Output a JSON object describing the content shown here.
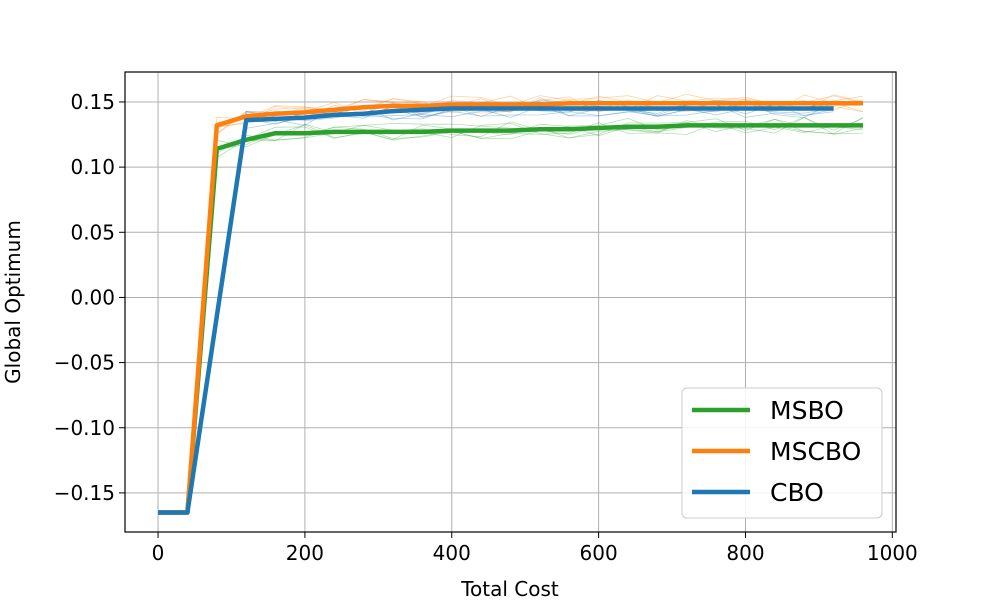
{
  "chart_data": {
    "type": "line",
    "title": "",
    "xlabel": "Total Cost",
    "ylabel": "Global Optimum",
    "xlim": [
      -45,
      1005
    ],
    "ylim": [
      -0.18,
      0.173
    ],
    "xticks": [
      0,
      200,
      400,
      600,
      800,
      1000
    ],
    "xtick_labels": [
      "0",
      "200",
      "400",
      "600",
      "800",
      "1000"
    ],
    "yticks": [
      -0.15,
      -0.1,
      -0.05,
      0.0,
      0.05,
      0.1,
      0.15
    ],
    "ytick_labels": [
      "−0.15",
      "−0.10",
      "−0.05",
      "0.00",
      "0.05",
      "0.10",
      "0.15"
    ],
    "grid": true,
    "legend_position": "lower-right",
    "series": [
      {
        "name": "MSBO",
        "color": "#2ca02c",
        "x": [
          0,
          40,
          80,
          120,
          160,
          200,
          240,
          280,
          320,
          360,
          400,
          440,
          480,
          520,
          560,
          600,
          640,
          680,
          720,
          760,
          800,
          840,
          880,
          920,
          960
        ],
        "y": [
          -0.165,
          -0.165,
          0.114,
          0.121,
          0.126,
          0.126,
          0.127,
          0.127,
          0.127,
          0.127,
          0.128,
          0.128,
          0.128,
          0.129,
          0.129,
          0.13,
          0.131,
          0.131,
          0.132,
          0.132,
          0.132,
          0.132,
          0.132,
          0.132,
          0.132
        ]
      },
      {
        "name": "MSCBO",
        "color": "#ff7f0e",
        "x": [
          0,
          40,
          80,
          120,
          160,
          200,
          240,
          280,
          320,
          360,
          400,
          440,
          480,
          520,
          560,
          600,
          640,
          680,
          720,
          760,
          800,
          840,
          880,
          920,
          960
        ],
        "y": [
          -0.165,
          -0.165,
          0.132,
          0.139,
          0.141,
          0.142,
          0.144,
          0.146,
          0.147,
          0.147,
          0.148,
          0.148,
          0.148,
          0.148,
          0.149,
          0.149,
          0.149,
          0.149,
          0.149,
          0.149,
          0.149,
          0.149,
          0.149,
          0.149,
          0.149
        ]
      },
      {
        "name": "CBO",
        "color": "#1f77b4",
        "x": [
          0,
          40,
          120,
          160,
          200,
          240,
          280,
          320,
          360,
          400,
          440,
          480,
          520,
          560,
          600,
          640,
          680,
          720,
          760,
          800,
          840,
          880,
          920
        ],
        "y": [
          -0.165,
          -0.165,
          0.136,
          0.137,
          0.138,
          0.14,
          0.141,
          0.143,
          0.144,
          0.145,
          0.145,
          0.145,
          0.145,
          0.145,
          0.145,
          0.145,
          0.145,
          0.145,
          0.145,
          0.145,
          0.145,
          0.145,
          0.145
        ]
      }
    ]
  }
}
